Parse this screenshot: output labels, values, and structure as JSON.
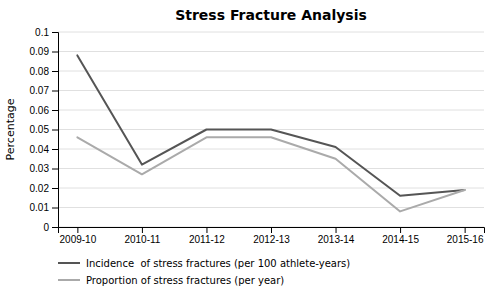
{
  "chart_data": {
    "type": "line",
    "title": "Stress Fracture Analysis",
    "y_label": "Percentage",
    "categories": [
      "2009-10",
      "2010-11",
      "2011-12",
      "2012-13",
      "2013-14",
      "2014-15",
      "2015-16"
    ],
    "series": [
      {
        "name": "Incidence  of stress fractures (per 100 athlete-years)",
        "color": "#555555",
        "values": [
          0.088,
          0.032,
          0.05,
          0.05,
          0.041,
          0.016,
          0.019
        ]
      },
      {
        "name": "Proportion of stress fractures (per year)",
        "color": "#aaaaaa",
        "values": [
          0.046,
          0.027,
          0.046,
          0.046,
          0.035,
          0.008,
          0.019
        ]
      }
    ],
    "ylim": [
      0,
      0.1
    ],
    "yticks": [
      0,
      0.01,
      0.02,
      0.03,
      0.04,
      0.05,
      0.06,
      0.07,
      0.08,
      0.09,
      0.1
    ],
    "grid": true,
    "legend": "bottom"
  }
}
